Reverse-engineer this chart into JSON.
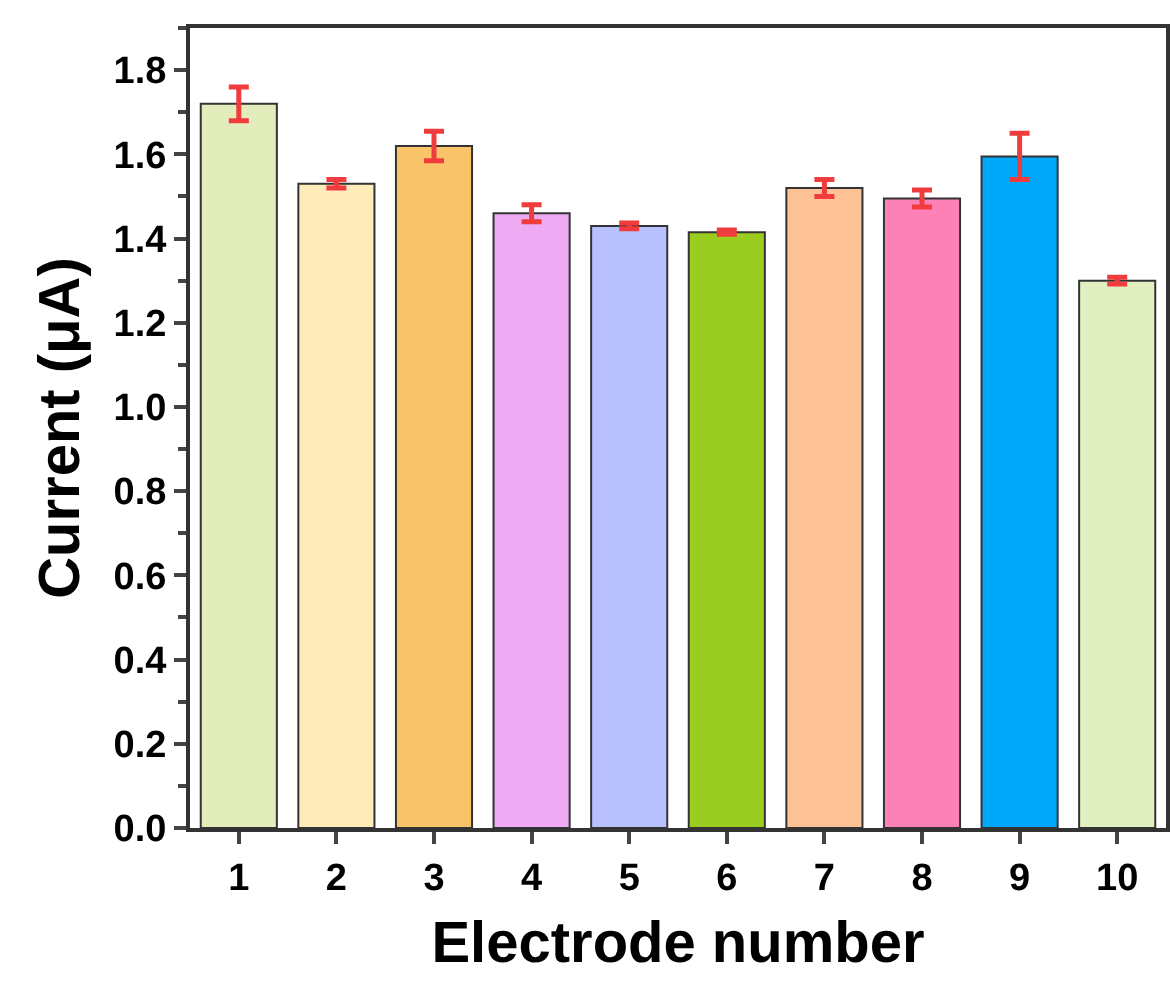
{
  "chart_data": {
    "type": "bar",
    "xlabel": "Electrode number",
    "ylabel": "Current (μA)",
    "categories": [
      "1",
      "2",
      "3",
      "4",
      "5",
      "6",
      "7",
      "8",
      "9",
      "10"
    ],
    "values": [
      1.72,
      1.53,
      1.62,
      1.46,
      1.43,
      1.415,
      1.52,
      1.495,
      1.595,
      1.3
    ],
    "errors": [
      0.04,
      0.01,
      0.035,
      0.02,
      0.007,
      0.005,
      0.02,
      0.02,
      0.055,
      0.008
    ],
    "colors": [
      "#e2edbb",
      "#fdebb9",
      "#f9c469",
      "#eeaaf2",
      "#b8c0fd",
      "#9acd1f",
      "#fdc296",
      "#fd80b6",
      "#00a8f9",
      "#e2efc0"
    ],
    "ylim": [
      0,
      1.9
    ],
    "yticks": [
      {
        "value": 0,
        "label": "0.0"
      },
      0.2,
      0.4,
      0.6,
      0.8,
      {
        "value": 1,
        "label": "1.0"
      },
      1.2,
      1.4,
      1.6,
      1.8
    ],
    "grid": false
  }
}
